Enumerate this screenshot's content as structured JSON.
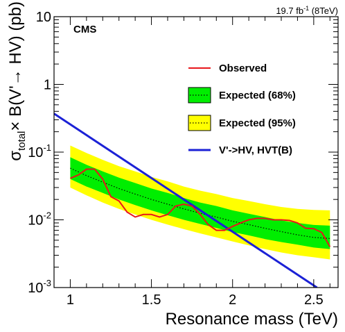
{
  "chart_data": {
    "type": "line",
    "experiment_label": "CMS",
    "luminosity_label": {
      "base": "19.7 fb",
      "exponent": "-1",
      "energy": " (8TeV)"
    },
    "xlabel": "Resonance mass (TeV)",
    "ylabel": {
      "sigma": "σ",
      "sub": "total",
      "rest": "× B(V'→ HV) (pb)"
    },
    "xlim": [
      0.9,
      2.65
    ],
    "ylim": [
      0.001,
      10
    ],
    "yscale": "log",
    "x_ticks": [
      {
        "value": 1.0,
        "label": "1"
      },
      {
        "value": 1.5,
        "label": "1.5"
      },
      {
        "value": 2.0,
        "label": "2"
      },
      {
        "value": 2.5,
        "label": "2.5"
      }
    ],
    "y_ticks": [
      {
        "exp": -3,
        "base": "10",
        "sup": "-3"
      },
      {
        "exp": -2,
        "base": "10",
        "sup": "-2"
      },
      {
        "exp": -1,
        "base": "10",
        "sup": "-1"
      },
      {
        "exp": 0,
        "label": "1"
      },
      {
        "exp": 1,
        "label": "10"
      }
    ],
    "legend": {
      "placement": "right",
      "entries": [
        {
          "label": "Observed",
          "style": "line",
          "color": "#e8161b"
        },
        {
          "label": "Expected (68%)",
          "style": "band",
          "color": "#00ee00",
          "median_style": "dotted"
        },
        {
          "label": "Expected (95%)",
          "style": "band",
          "color": "#ffff00",
          "median_style": "dotted"
        },
        {
          "label": "V'->HV, HVT(B)",
          "style": "line",
          "color": "#1b21d6"
        }
      ]
    },
    "colors": {
      "observed": "#e8161b",
      "band68": "#00ee00",
      "band95": "#ffff00",
      "theory": "#1b21d6",
      "median": "#000000"
    },
    "x": [
      1.0,
      1.1,
      1.2,
      1.3,
      1.4,
      1.5,
      1.6,
      1.7,
      1.8,
      1.9,
      2.0,
      2.1,
      2.2,
      2.3,
      2.4,
      2.5,
      2.6
    ],
    "expected_median": [
      0.058,
      0.045,
      0.036,
      0.029,
      0.024,
      0.02,
      0.017,
      0.0145,
      0.0125,
      0.011,
      0.0095,
      0.0085,
      0.0075,
      0.0067,
      0.006,
      0.0055,
      0.0053
    ],
    "band68_low": [
      0.04,
      0.031,
      0.025,
      0.02,
      0.0165,
      0.0138,
      0.0117,
      0.01,
      0.0087,
      0.0076,
      0.0066,
      0.0059,
      0.0052,
      0.0047,
      0.0043,
      0.0039,
      0.0037
    ],
    "band68_high": [
      0.084,
      0.065,
      0.052,
      0.042,
      0.035,
      0.029,
      0.025,
      0.021,
      0.018,
      0.016,
      0.0138,
      0.0123,
      0.011,
      0.0098,
      0.009,
      0.0084,
      0.0082
    ],
    "band95_low": [
      0.03,
      0.023,
      0.018,
      0.0145,
      0.012,
      0.01,
      0.0085,
      0.0073,
      0.0063,
      0.0055,
      0.0048,
      0.0042,
      0.0037,
      0.0033,
      0.003,
      0.0028,
      0.0026
    ],
    "band95_high": [
      0.125,
      0.097,
      0.077,
      0.062,
      0.052,
      0.043,
      0.037,
      0.031,
      0.027,
      0.024,
      0.021,
      0.019,
      0.017,
      0.0155,
      0.0145,
      0.014,
      0.0138
    ],
    "observed": {
      "x": [
        1.0,
        1.05,
        1.1,
        1.15,
        1.2,
        1.25,
        1.3,
        1.35,
        1.4,
        1.45,
        1.5,
        1.55,
        1.6,
        1.65,
        1.7,
        1.75,
        1.8,
        1.85,
        1.9,
        1.95,
        2.0,
        2.05,
        2.1,
        2.15,
        2.2,
        2.25,
        2.3,
        2.35,
        2.4,
        2.45,
        2.5,
        2.55,
        2.6
      ],
      "y": [
        0.041,
        0.046,
        0.056,
        0.056,
        0.04,
        0.022,
        0.019,
        0.013,
        0.011,
        0.012,
        0.012,
        0.011,
        0.012,
        0.016,
        0.017,
        0.016,
        0.012,
        0.0085,
        0.007,
        0.007,
        0.008,
        0.009,
        0.01,
        0.0105,
        0.0105,
        0.01,
        0.01,
        0.0098,
        0.009,
        0.0075,
        0.0074,
        0.0065,
        0.004
      ]
    },
    "theory": {
      "x": [
        0.9,
        2.52
      ],
      "y": [
        0.37,
        0.001
      ]
    }
  }
}
